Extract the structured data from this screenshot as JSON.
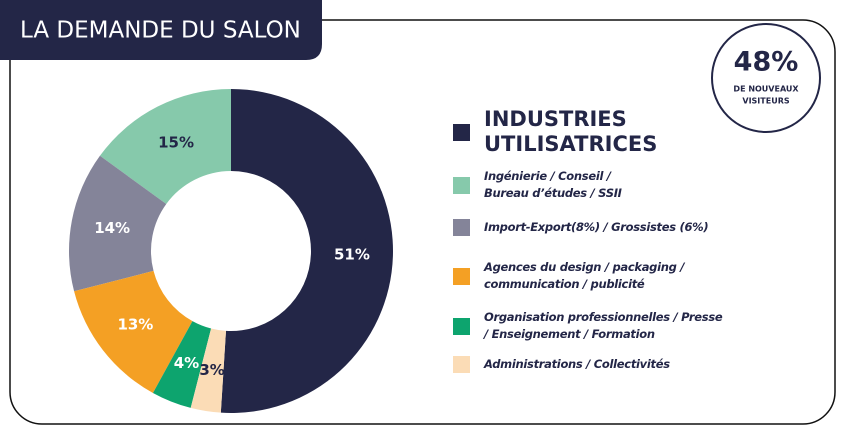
{
  "chart_data": {
    "type": "donut",
    "title": "LA DEMANDE DU SALON",
    "badge": {
      "value": "48%",
      "lines": [
        "DE NOUVEAUX",
        "VISITEURS"
      ]
    },
    "series": [
      {
        "name": "INDUSTRIES UTILISATRICES",
        "color": "#232647",
        "value": 51,
        "value_label": "51%"
      },
      {
        "name": "Ingénierie / Conseil / Bureau d’études / SSII",
        "color": "#86c9ab",
        "value": 15,
        "value_label": "15%"
      },
      {
        "name": "Import-Export(8%) / Grossistes (6%)",
        "color": "#848499",
        "value": 14,
        "value_label": "14%"
      },
      {
        "name": "Agences du design / packaging / communication / publicité",
        "color": "#f4a024",
        "value": 13,
        "value_label": "13%"
      },
      {
        "name": "Organisation professionnelles / Presse / Enseignement / Formation",
        "color": "#0da46e",
        "value": 4,
        "value_label": "4%"
      },
      {
        "name": "Administrations / Collectivités",
        "color": "#fbdcb6",
        "value": 3,
        "value_label": "3%"
      }
    ]
  }
}
